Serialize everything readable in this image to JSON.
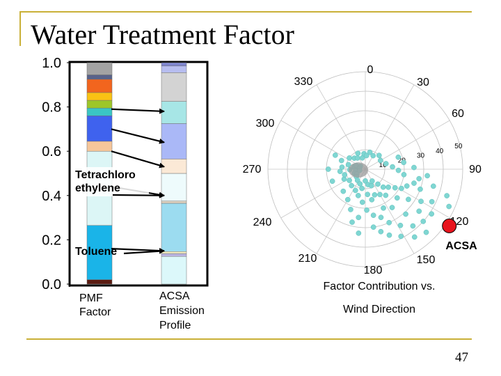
{
  "slide": {
    "title": "Water Treatment Factor",
    "page_number": "47"
  },
  "colors": {
    "accent_rule": "#c9b037",
    "highlight_point": "#e8141d",
    "scatter_points": "#7fd6d2",
    "dense_core": "#9b9b9b"
  },
  "chart_data": [
    {
      "type": "bar",
      "chart_kind": "stacked-profile",
      "y_ticks": [
        "0.0",
        "0.2",
        "0.4",
        "0.6",
        "0.8",
        "1.0"
      ],
      "ylim": [
        0,
        1.0
      ],
      "pmf_factor": {
        "label": [
          "PMF",
          "Factor"
        ],
        "segments": [
          {
            "from": 0.0,
            "to": 0.02,
            "color": "#5a1c12"
          },
          {
            "from": 0.02,
            "to": 0.265,
            "color": "#1ab4e8"
          },
          {
            "from": 0.265,
            "to": 0.6,
            "color": "#dcf6f6"
          },
          {
            "from": 0.6,
            "to": 0.645,
            "color": "#f6c69a"
          },
          {
            "from": 0.645,
            "to": 0.76,
            "color": "#3f62ee"
          },
          {
            "from": 0.76,
            "to": 0.795,
            "color": "#3ac5c4"
          },
          {
            "from": 0.795,
            "to": 0.83,
            "color": "#9dc629"
          },
          {
            "from": 0.83,
            "to": 0.865,
            "color": "#fac214"
          },
          {
            "from": 0.865,
            "to": 0.925,
            "color": "#f2651e"
          },
          {
            "from": 0.925,
            "to": 0.945,
            "color": "#58628a"
          },
          {
            "from": 0.945,
            "to": 1.0,
            "color": "#a3a3a3"
          }
        ]
      },
      "emission_profile": {
        "label": [
          "ACSA",
          "Emission",
          "Profile"
        ],
        "segments": [
          {
            "from": 0.0,
            "to": 0.125,
            "color": "#dcf8fa"
          },
          {
            "from": 0.125,
            "to": 0.138,
            "color": "#b9b3e0"
          },
          {
            "from": 0.138,
            "to": 0.147,
            "color": "#f4eec0"
          },
          {
            "from": 0.147,
            "to": 0.365,
            "color": "#9cdcf0"
          },
          {
            "from": 0.365,
            "to": 0.375,
            "color": "#dfd2c0"
          },
          {
            "from": 0.375,
            "to": 0.5,
            "color": "#eefbfc"
          },
          {
            "from": 0.5,
            "to": 0.565,
            "color": "#fbe9d6"
          },
          {
            "from": 0.565,
            "to": 0.725,
            "color": "#aab8f7"
          },
          {
            "from": 0.725,
            "to": 0.825,
            "color": "#a7e6e6"
          },
          {
            "from": 0.825,
            "to": 0.955,
            "color": "#d3d3d3"
          },
          {
            "from": 0.955,
            "to": 0.985,
            "color": "#b7bdf0"
          },
          {
            "from": 0.985,
            "to": 1.0,
            "color": "#7f86cf"
          }
        ]
      },
      "annotations": [
        {
          "text": [
            "Tetrachloro",
            "ethylene"
          ]
        },
        {
          "text": [
            "Toluene"
          ]
        }
      ],
      "links": [
        {
          "pmf_value": 0.79,
          "profile_value": 0.78
        },
        {
          "pmf_value": 0.7,
          "profile_value": 0.64
        },
        {
          "pmf_value": 0.6,
          "profile_value": 0.53
        },
        {
          "pmf_value": 0.44,
          "profile_value": 0.4
        },
        {
          "pmf_value": 0.16,
          "profile_value": 0.15
        }
      ]
    },
    {
      "type": "scatter",
      "projection": "polar",
      "direction_labels": [
        "0",
        "30",
        "60",
        "90",
        "120",
        "150",
        "180",
        "210",
        "240",
        "270",
        "300",
        "330"
      ],
      "ring_labels": [
        "10",
        "20",
        "30",
        "40",
        "50"
      ],
      "r_max": 50,
      "points": [
        {
          "angle": 275,
          "r": 4
        },
        {
          "angle": 282,
          "r": 6
        },
        {
          "angle": 292,
          "r": 5
        },
        {
          "angle": 300,
          "r": 3
        },
        {
          "angle": 262,
          "r": 5
        },
        {
          "angle": 250,
          "r": 6
        },
        {
          "angle": 268,
          "r": 8
        },
        {
          "angle": 278,
          "r": 3
        },
        {
          "angle": 258,
          "r": 3
        },
        {
          "angle": 285,
          "r": 9
        },
        {
          "angle": 240,
          "r": 5
        },
        {
          "angle": 230,
          "r": 6
        },
        {
          "angle": 215,
          "r": 7
        },
        {
          "angle": 200,
          "r": 8
        },
        {
          "angle": 190,
          "r": 10
        },
        {
          "angle": 180,
          "r": 6
        },
        {
          "angle": 170,
          "r": 8
        },
        {
          "angle": 160,
          "r": 9
        },
        {
          "angle": 150,
          "r": 7
        },
        {
          "angle": 140,
          "r": 10
        },
        {
          "angle": 135,
          "r": 13
        },
        {
          "angle": 128,
          "r": 15
        },
        {
          "angle": 122,
          "r": 18
        },
        {
          "angle": 118,
          "r": 21
        },
        {
          "angle": 112,
          "r": 23
        },
        {
          "angle": 106,
          "r": 26
        },
        {
          "angle": 100,
          "r": 28
        },
        {
          "angle": 142,
          "r": 17
        },
        {
          "angle": 150,
          "r": 15
        },
        {
          "angle": 160,
          "r": 14
        },
        {
          "angle": 168,
          "r": 16
        },
        {
          "angle": 175,
          "r": 13
        },
        {
          "angle": 185,
          "r": 17
        },
        {
          "angle": 195,
          "r": 14
        },
        {
          "angle": 205,
          "r": 12
        },
        {
          "angle": 220,
          "r": 11
        },
        {
          "angle": 235,
          "r": 10
        },
        {
          "angle": 245,
          "r": 12
        },
        {
          "angle": 255,
          "r": 11
        },
        {
          "angle": 265,
          "r": 13
        },
        {
          "angle": 275,
          "r": 12
        },
        {
          "angle": 290,
          "r": 13
        },
        {
          "angle": 305,
          "r": 10
        },
        {
          "angle": 315,
          "r": 8
        },
        {
          "angle": 325,
          "r": 7
        },
        {
          "angle": 335,
          "r": 9
        },
        {
          "angle": 345,
          "r": 6
        },
        {
          "angle": 355,
          "r": 8
        },
        {
          "angle": 5,
          "r": 7
        },
        {
          "angle": 15,
          "r": 9
        },
        {
          "angle": 30,
          "r": 8
        },
        {
          "angle": 45,
          "r": 10
        },
        {
          "angle": 60,
          "r": 9
        },
        {
          "angle": 75,
          "r": 11
        },
        {
          "angle": 85,
          "r": 14
        },
        {
          "angle": 92,
          "r": 17
        },
        {
          "angle": 98,
          "r": 20
        },
        {
          "angle": 110,
          "r": 30
        },
        {
          "angle": 125,
          "r": 27
        },
        {
          "angle": 132,
          "r": 22
        },
        {
          "angle": 145,
          "r": 24
        },
        {
          "angle": 155,
          "r": 22
        },
        {
          "angle": 162,
          "r": 26
        },
        {
          "angle": 170,
          "r": 24
        },
        {
          "angle": 178,
          "r": 21
        },
        {
          "angle": 188,
          "r": 25
        },
        {
          "angle": 120,
          "r": 33
        },
        {
          "angle": 128,
          "r": 35
        },
        {
          "angle": 138,
          "r": 31
        },
        {
          "angle": 148,
          "r": 34
        },
        {
          "angle": 156,
          "r": 30
        },
        {
          "angle": 116,
          "r": 38
        },
        {
          "angle": 124,
          "r": 41
        },
        {
          "angle": 132,
          "r": 40
        },
        {
          "angle": 140,
          "r": 38
        },
        {
          "angle": 136,
          "r": 45
        },
        {
          "angle": 144,
          "r": 43
        },
        {
          "angle": 152,
          "r": 39
        },
        {
          "angle": 160,
          "r": 36
        },
        {
          "angle": 166,
          "r": 33
        },
        {
          "angle": 172,
          "r": 30
        },
        {
          "angle": 104,
          "r": 36
        },
        {
          "angle": 96,
          "r": 32
        },
        {
          "angle": 88,
          "r": 25
        },
        {
          "angle": 80,
          "r": 20
        },
        {
          "angle": 70,
          "r": 18
        },
        {
          "angle": 108,
          "r": 44
        },
        {
          "angle": 114,
          "r": 47
        },
        {
          "angle": 186,
          "r": 33
        },
        {
          "angle": 194,
          "r": 28
        },
        {
          "angle": 200,
          "r": 22
        },
        {
          "angle": 210,
          "r": 18
        },
        {
          "angle": 225,
          "r": 16
        },
        {
          "angle": 250,
          "r": 18
        },
        {
          "angle": 270,
          "r": 19
        },
        {
          "angle": 295,
          "r": 17
        }
      ],
      "dense_core": {
        "angle": 290,
        "r": 3
      },
      "highlight": {
        "angle": 124,
        "r": 52,
        "label": "ACSA"
      },
      "caption": [
        "Factor Contribution vs.",
        "Wind Direction"
      ]
    }
  ]
}
